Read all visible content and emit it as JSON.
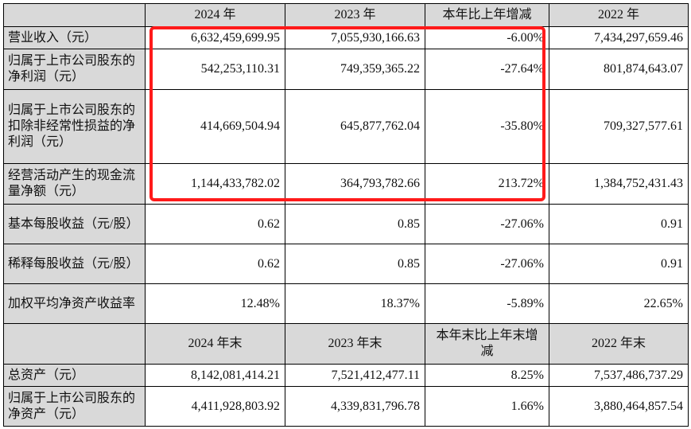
{
  "header1": [
    "",
    "2024 年",
    "2023 年",
    "本年比上年增减",
    "2022 年"
  ],
  "rows1": [
    {
      "label": "营业收入（元）",
      "values": [
        "6,632,459,699.95",
        "7,055,930,166.63",
        "-6.00%",
        "7,434,297,659.46"
      ]
    },
    {
      "label": "归属于上市公司股东的净利润（元）",
      "values": [
        "542,253,110.31",
        "749,359,365.22",
        "-27.64%",
        "801,874,643.07"
      ]
    },
    {
      "label": "归属于上市公司股东的扣除非经常性损益的净利润（元）",
      "values": [
        "414,669,504.94",
        "645,877,762.04",
        "-35.80%",
        "709,327,577.61"
      ]
    },
    {
      "label": "经营活动产生的现金流量净额（元）",
      "values": [
        "1,144,433,782.02",
        "364,793,782.66",
        "213.72%",
        "1,384,752,431.43"
      ]
    },
    {
      "label": "基本每股收益（元/股）",
      "values": [
        "0.62",
        "0.85",
        "-27.06%",
        "0.91"
      ]
    },
    {
      "label": "稀释每股收益（元/股）",
      "values": [
        "0.62",
        "0.85",
        "-27.06%",
        "0.91"
      ]
    },
    {
      "label": "加权平均净资产收益率",
      "values": [
        "12.48%",
        "18.37%",
        "-5.89%",
        "22.65%"
      ]
    }
  ],
  "header2": [
    "",
    "2024 年末",
    "2023 年末",
    "本年末比上年末增减",
    "2022 年末"
  ],
  "rows2": [
    {
      "label": "总资产（元）",
      "values": [
        "8,142,081,414.21",
        "7,521,412,477.11",
        "8.25%",
        "7,537,486,737.29"
      ]
    },
    {
      "label": "归属于上市公司股东的净资产（元）",
      "values": [
        "4,411,928,803.92",
        "4,339,831,796.78",
        "1.66%",
        "3,880,464,857.54"
      ]
    }
  ],
  "highlight_color": "#ff1a1a",
  "header_bg": "#d9d9d9"
}
